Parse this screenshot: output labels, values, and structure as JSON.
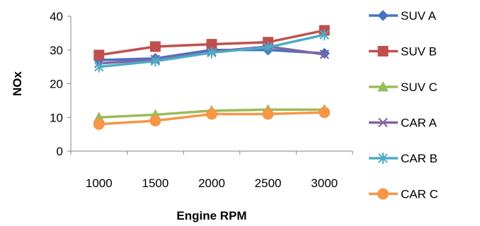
{
  "chart_data": {
    "type": "line",
    "categories": [
      "1000",
      "1500",
      "2000",
      "2500",
      "3000"
    ],
    "xlabel": "Engine RPM",
    "ylabel": "NOx",
    "ylim": [
      0,
      40
    ],
    "yticks": [
      "0",
      "10",
      "20",
      "30",
      "40"
    ],
    "grid": false,
    "legend_position": "right",
    "series": [
      {
        "name": "SUV A",
        "values": [
          27,
          27.5,
          30,
          30,
          29
        ],
        "color": "#4472C4",
        "marker": "diamond"
      },
      {
        "name": "SUV B",
        "values": [
          28.5,
          31,
          31.7,
          32.3,
          35.8
        ],
        "color": "#C0504D",
        "marker": "square"
      },
      {
        "name": "SUV C",
        "values": [
          10,
          10.8,
          12,
          12.3,
          12.3
        ],
        "color": "#9BBB59",
        "marker": "triangle"
      },
      {
        "name": "CAR A",
        "values": [
          26,
          27.2,
          29.5,
          31,
          28.7
        ],
        "color": "#8064A2",
        "marker": "x"
      },
      {
        "name": "CAR B",
        "values": [
          25,
          26.7,
          29.2,
          30.8,
          34.5
        ],
        "color": "#4BACC6",
        "marker": "star"
      },
      {
        "name": "CAR C",
        "values": [
          8,
          9,
          11,
          11,
          11.5
        ],
        "color": "#F79646",
        "marker": "circle"
      }
    ]
  }
}
